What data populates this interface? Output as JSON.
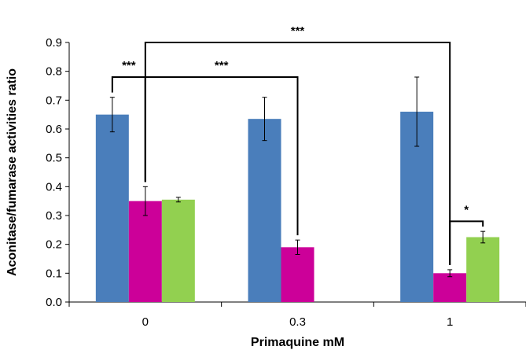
{
  "chart_data": {
    "type": "bar",
    "title": "",
    "xlabel": "Primaquine mM",
    "ylabel": "Aconitase/fumarase activities ratio",
    "ylim": [
      0,
      0.9
    ],
    "yticks": [
      "0.0",
      "0.1",
      "0.2",
      "0.3",
      "0.4",
      "0.5",
      "0.6",
      "0.7",
      "0.8",
      "0.9"
    ],
    "categories": [
      "0",
      "0.3",
      "1"
    ],
    "grid": false,
    "legend": "none",
    "series": [
      {
        "color": "#4a7ebb",
        "values": [
          0.65,
          0.635,
          0.66
        ],
        "errors": [
          0.06,
          0.075,
          0.12
        ]
      },
      {
        "color": "#cc0099",
        "values": [
          0.35,
          0.19,
          0.1
        ],
        "errors": [
          0.05,
          0.025,
          0.012
        ]
      },
      {
        "color": "#92d050",
        "values": [
          0.355,
          null,
          0.225
        ],
        "errors": [
          0.008,
          null,
          0.02
        ]
      }
    ],
    "annotations": [
      {
        "label": "***",
        "from": {
          "category": 0,
          "series": 0
        },
        "to": {
          "category": 0,
          "series": 1
        },
        "level": 0.78
      },
      {
        "label": "***",
        "from": {
          "category": 0,
          "series": 1
        },
        "to": {
          "category": 1,
          "series": 1
        },
        "level": 0.78
      },
      {
        "label": "***",
        "from": {
          "category": 0,
          "series": 1
        },
        "to": {
          "category": 2,
          "series": 1
        },
        "level": 0.9
      },
      {
        "label": "*",
        "from": {
          "category": 2,
          "series": 1
        },
        "to": {
          "category": 2,
          "series": 2
        },
        "level": 0.28
      }
    ]
  }
}
